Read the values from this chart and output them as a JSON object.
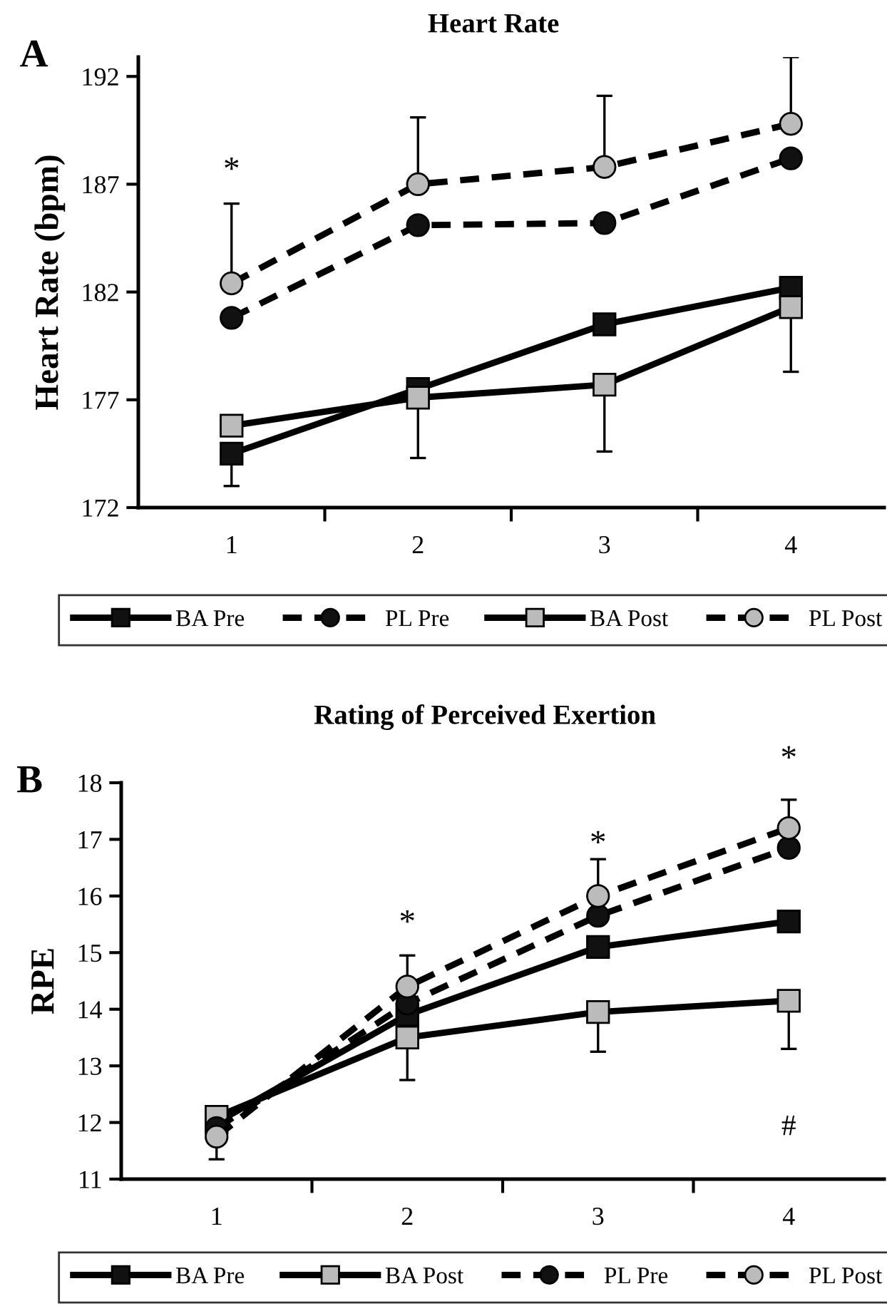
{
  "chart_data": [
    {
      "type": "line",
      "title": "Heart Rate",
      "ylabel": "Heart Rate (bpm)",
      "categories": [
        "1",
        "2",
        "3",
        "4"
      ],
      "ylim": [
        172,
        192.9
      ],
      "yticks": [
        172,
        177,
        182,
        187,
        192
      ],
      "grid": false,
      "legend": "bottom",
      "annotations": [
        "A",
        "*"
      ],
      "series": [
        {
          "name": "BA Pre",
          "color": "#111111",
          "marker": "square",
          "line_style": "solid",
          "values": [
            174.5,
            177.5,
            180.5,
            182.2
          ],
          "errors": [
            [
              173.0,
              174.5
            ],
            null,
            null,
            null
          ]
        },
        {
          "name": "PL Pre",
          "color": "#111111",
          "marker": "circle",
          "line_style": "dashed",
          "values": [
            180.8,
            185.1,
            185.2,
            188.2
          ],
          "errors": [
            null,
            null,
            null,
            null
          ]
        },
        {
          "name": "BA Post",
          "color": "#bbbbbb",
          "marker": "square",
          "line_style": "solid",
          "values": [
            175.8,
            177.1,
            177.7,
            181.3
          ],
          "errors": [
            null,
            [
              174.3,
              177.1
            ],
            [
              174.6,
              177.7
            ],
            [
              178.3,
              181.3
            ]
          ]
        },
        {
          "name": "PL Post",
          "color": "#bbbbbb",
          "marker": "circle",
          "line_style": "dashed",
          "values": [
            182.4,
            187.0,
            187.8,
            189.8
          ],
          "errors": [
            [
              182.4,
              186.1
            ],
            [
              187.0,
              190.1
            ],
            [
              187.8,
              191.1
            ],
            [
              189.8,
              192.9
            ]
          ]
        }
      ]
    },
    {
      "type": "line",
      "title": "Rating of Perceived Exertion",
      "ylabel": "RPE",
      "categories": [
        "1",
        "2",
        "3",
        "4"
      ],
      "ylim": [
        11,
        18
      ],
      "yticks": [
        11,
        12,
        13,
        14,
        15,
        16,
        17,
        18
      ],
      "grid": false,
      "legend": "bottom",
      "annotations": [
        "B",
        "*",
        "*",
        "*",
        "#"
      ],
      "series": [
        {
          "name": "BA Pre",
          "color": "#111111",
          "marker": "square",
          "line_style": "solid",
          "values": [
            12.0,
            13.9,
            15.1,
            15.55
          ],
          "errors": [
            null,
            null,
            null,
            null
          ]
        },
        {
          "name": "BA Post",
          "color": "#bbbbbb",
          "marker": "square",
          "line_style": "solid",
          "values": [
            12.1,
            13.5,
            13.95,
            14.15
          ],
          "errors": [
            null,
            [
              12.75,
              13.5
            ],
            [
              13.25,
              13.95
            ],
            [
              13.3,
              14.15
            ]
          ]
        },
        {
          "name": "PL Pre",
          "color": "#111111",
          "marker": "circle",
          "line_style": "dashed",
          "values": [
            11.9,
            14.1,
            15.65,
            16.85
          ],
          "errors": [
            null,
            null,
            null,
            null
          ]
        },
        {
          "name": "PL Post",
          "color": "#bbbbbb",
          "marker": "circle",
          "line_style": "dashed",
          "values": [
            11.75,
            14.4,
            16.0,
            17.2
          ],
          "errors": [
            [
              11.35,
              11.75
            ],
            [
              14.4,
              14.95
            ],
            [
              16.0,
              16.65
            ],
            [
              17.2,
              17.7
            ]
          ]
        }
      ]
    }
  ]
}
